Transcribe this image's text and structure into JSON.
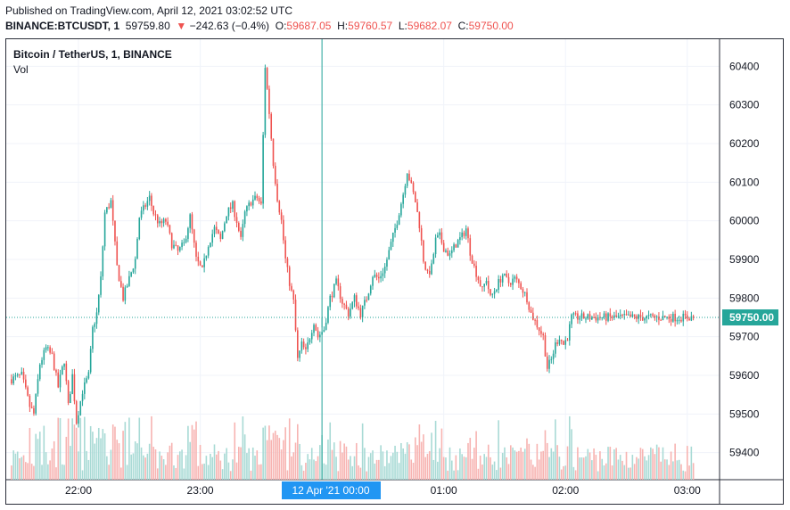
{
  "header": {
    "published": "Published on TradingView.com, April 12, 2021 03:02:52 UTC",
    "symbol": "BINANCE:BTCUSDT, 1",
    "last": "59759.80",
    "change": "−242.63 (−0.4%)",
    "o_label": "O:",
    "o_value": "59687.05",
    "h_label": "H:",
    "h_value": "59760.57",
    "l_label": "L:",
    "l_value": "59682.07",
    "c_label": "C:",
    "c_value": "59750.00"
  },
  "legend": {
    "title": "Bitcoin / TetherUS, 1, BINANCE",
    "volume": "Vol"
  },
  "chart_data": {
    "type": "candlestick",
    "interval_minutes": 1,
    "ylim": [
      59330,
      60470
    ],
    "yticks": [
      59400,
      59500,
      59600,
      59700,
      59800,
      59900,
      60000,
      60100,
      60200,
      60300,
      60400
    ],
    "xticks": [
      {
        "time": "22:00",
        "minutes": 0
      },
      {
        "time": "23:00",
        "minutes": 60
      },
      {
        "time": "12 Apr '21   00:00",
        "minutes": 120,
        "highlight": true
      },
      {
        "time": "01:00",
        "minutes": 180
      },
      {
        "time": "02:00",
        "minutes": 240
      },
      {
        "time": "03:00",
        "minutes": 300
      }
    ],
    "start_minute": -33,
    "end_minute": 303,
    "last_price": 59750.0,
    "last_price_label": "59750.00",
    "colors": {
      "up": "#26a69a",
      "down": "#ef5350",
      "up_vol": "#a8dad5",
      "down_vol": "#f7b3b1",
      "axis_highlight": "#2196f3"
    },
    "grid": true,
    "close_path": [
      [
        -33,
        59590
      ],
      [
        -28,
        59600
      ],
      [
        -24,
        59520
      ],
      [
        -22,
        59500
      ],
      [
        -19,
        59630
      ],
      [
        -16,
        59670
      ],
      [
        -13,
        59650
      ],
      [
        -10,
        59570
      ],
      [
        -7,
        59640
      ],
      [
        -5,
        59520
      ],
      [
        -3,
        59600
      ],
      [
        -1,
        59480
      ],
      [
        2,
        59560
      ],
      [
        5,
        59600
      ],
      [
        7,
        59720
      ],
      [
        9,
        59760
      ],
      [
        11,
        59850
      ],
      [
        13,
        60020
      ],
      [
        16,
        60050
      ],
      [
        19,
        59880
      ],
      [
        22,
        59800
      ],
      [
        25,
        59850
      ],
      [
        28,
        59900
      ],
      [
        30,
        60010
      ],
      [
        33,
        60040
      ],
      [
        35,
        60060
      ],
      [
        37,
        60020
      ],
      [
        40,
        59990
      ],
      [
        43,
        60000
      ],
      [
        46,
        59940
      ],
      [
        49,
        59920
      ],
      [
        52,
        59940
      ],
      [
        55,
        60010
      ],
      [
        58,
        59900
      ],
      [
        61,
        59870
      ],
      [
        64,
        59940
      ],
      [
        67,
        59980
      ],
      [
        70,
        59950
      ],
      [
        73,
        60020
      ],
      [
        76,
        60040
      ],
      [
        78,
        60000
      ],
      [
        80,
        59950
      ],
      [
        82,
        60020
      ],
      [
        85,
        60050
      ],
      [
        88,
        60060
      ],
      [
        90,
        60040
      ],
      [
        92,
        60400
      ],
      [
        94,
        60280
      ],
      [
        96,
        60150
      ],
      [
        98,
        60060
      ],
      [
        100,
        60000
      ],
      [
        102,
        59900
      ],
      [
        104,
        59840
      ],
      [
        106,
        59790
      ],
      [
        108,
        59640
      ],
      [
        110,
        59680
      ],
      [
        112,
        59660
      ],
      [
        114,
        59700
      ],
      [
        116,
        59740
      ],
      [
        118,
        59700
      ],
      [
        121,
        59720
      ],
      [
        124,
        59800
      ],
      [
        127,
        59840
      ],
      [
        130,
        59790
      ],
      [
        133,
        59760
      ],
      [
        136,
        59800
      ],
      [
        139,
        59760
      ],
      [
        142,
        59800
      ],
      [
        145,
        59860
      ],
      [
        148,
        59850
      ],
      [
        151,
        59880
      ],
      [
        154,
        59940
      ],
      [
        157,
        60000
      ],
      [
        160,
        60070
      ],
      [
        162,
        60130
      ],
      [
        164,
        60090
      ],
      [
        166,
        60050
      ],
      [
        168,
        59990
      ],
      [
        170,
        59900
      ],
      [
        172,
        59860
      ],
      [
        174,
        59880
      ],
      [
        176,
        59950
      ],
      [
        178,
        59960
      ],
      [
        180,
        59930
      ],
      [
        183,
        59910
      ],
      [
        186,
        59940
      ],
      [
        189,
        59960
      ],
      [
        191,
        59980
      ],
      [
        193,
        59920
      ],
      [
        195,
        59880
      ],
      [
        197,
        59850
      ],
      [
        199,
        59820
      ],
      [
        201,
        59850
      ],
      [
        203,
        59800
      ],
      [
        206,
        59830
      ],
      [
        209,
        59860
      ],
      [
        212,
        59840
      ],
      [
        215,
        59850
      ],
      [
        218,
        59830
      ],
      [
        221,
        59800
      ],
      [
        223,
        59760
      ],
      [
        225,
        59740
      ],
      [
        227,
        59720
      ],
      [
        229,
        59700
      ],
      [
        231,
        59620
      ],
      [
        233,
        59640
      ],
      [
        235,
        59680
      ],
      [
        237,
        59700
      ],
      [
        239,
        59680
      ],
      [
        241,
        59700
      ],
      [
        243,
        59750
      ]
    ]
  }
}
